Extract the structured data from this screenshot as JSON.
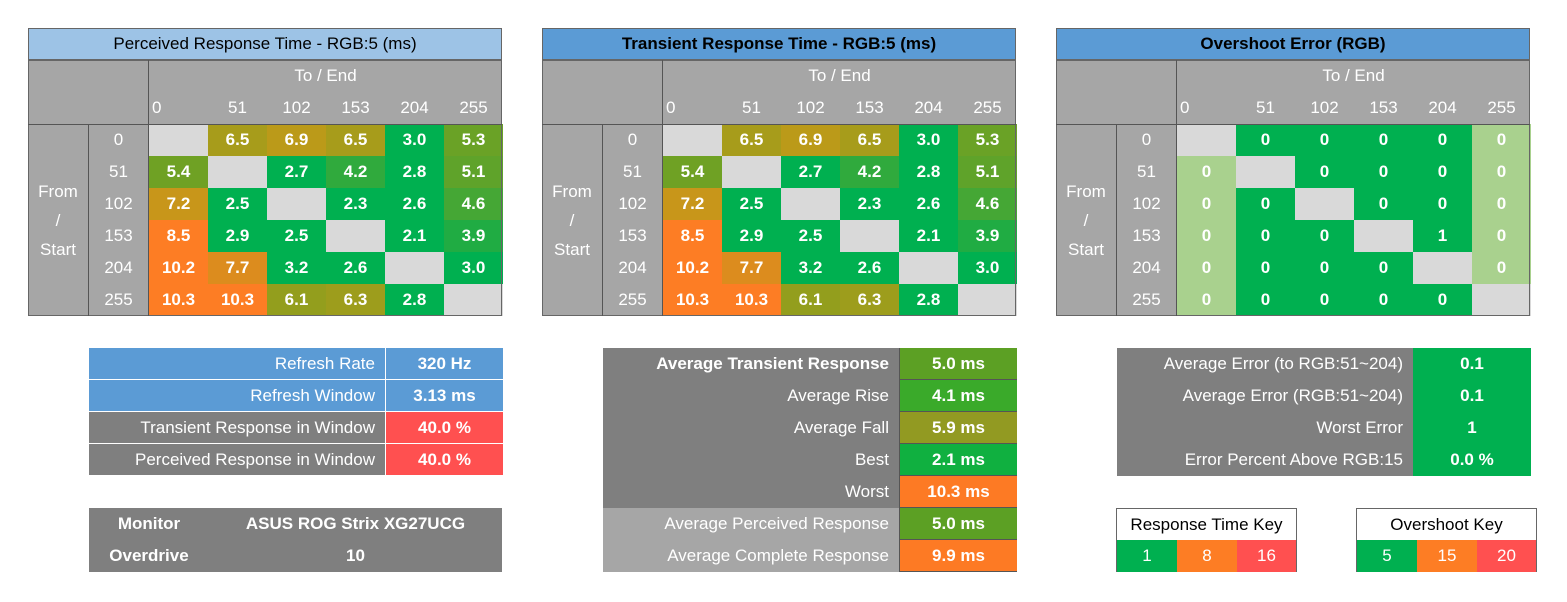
{
  "matrices": [
    {
      "title": "Perceived Response Time - RGB:5 (ms)",
      "title_bg": "#9dc3e6",
      "title_bold": false,
      "kind": "time",
      "to_label": "To / End",
      "from_label": [
        "From",
        "/",
        "Start"
      ],
      "levels": [
        "0",
        "51",
        "102",
        "153",
        "204",
        "255"
      ],
      "values": [
        [
          null,
          "6.5",
          "6.9",
          "6.5",
          "3.0",
          "5.3"
        ],
        [
          "5.4",
          null,
          "2.7",
          "4.2",
          "2.8",
          "5.1"
        ],
        [
          "7.2",
          "2.5",
          null,
          "2.3",
          "2.6",
          "4.6"
        ],
        [
          "8.5",
          "2.9",
          "2.5",
          null,
          "2.1",
          "3.9"
        ],
        [
          "10.2",
          "7.7",
          "3.2",
          "2.6",
          null,
          "3.0"
        ],
        [
          "10.3",
          "10.3",
          "6.1",
          "6.3",
          "2.8",
          null
        ]
      ]
    },
    {
      "title": "Transient Response Time - RGB:5 (ms)",
      "title_bg": "#5b9bd5",
      "title_bold": true,
      "kind": "time",
      "to_label": "To / End",
      "from_label": [
        "From",
        "/",
        "Start"
      ],
      "levels": [
        "0",
        "51",
        "102",
        "153",
        "204",
        "255"
      ],
      "values": [
        [
          null,
          "6.5",
          "6.9",
          "6.5",
          "3.0",
          "5.3"
        ],
        [
          "5.4",
          null,
          "2.7",
          "4.2",
          "2.8",
          "5.1"
        ],
        [
          "7.2",
          "2.5",
          null,
          "2.3",
          "2.6",
          "4.6"
        ],
        [
          "8.5",
          "2.9",
          "2.5",
          null,
          "2.1",
          "3.9"
        ],
        [
          "10.2",
          "7.7",
          "3.2",
          "2.6",
          null,
          "3.0"
        ],
        [
          "10.3",
          "10.3",
          "6.1",
          "6.3",
          "2.8",
          null
        ]
      ]
    },
    {
      "title": "Overshoot Error (RGB)",
      "title_bg": "#5b9bd5",
      "title_bold": true,
      "kind": "overshoot",
      "to_label": "To / End",
      "from_label": [
        "From",
        "/",
        "Start"
      ],
      "levels": [
        "0",
        "51",
        "102",
        "153",
        "204",
        "255"
      ],
      "values": [
        [
          null,
          "0",
          "0",
          "0",
          "0",
          "0"
        ],
        [
          "0",
          null,
          "0",
          "0",
          "0",
          "0"
        ],
        [
          "0",
          "0",
          null,
          "0",
          "0",
          "0"
        ],
        [
          "0",
          "0",
          "0",
          null,
          "1",
          "0"
        ],
        [
          "0",
          "0",
          "0",
          "0",
          null,
          "0"
        ],
        [
          "0",
          "0",
          "0",
          "0",
          "0",
          null
        ]
      ]
    }
  ],
  "refresh_table": {
    "rows": [
      {
        "label": "Refresh Rate",
        "value": "320 Hz",
        "label_bg": "#5b9bd5",
        "value_bg": "#5b9bd5"
      },
      {
        "label": "Refresh Window",
        "value": "3.13 ms",
        "label_bg": "#5b9bd5",
        "value_bg": "#5b9bd5"
      },
      {
        "label": "Transient Response in Window",
        "value": "40.0 %",
        "label_bg": "#7f7f7f",
        "value_bg": "#ff5050"
      },
      {
        "label": "Perceived Response in Window",
        "value": "40.0 %",
        "label_bg": "#7f7f7f",
        "value_bg": "#ff5050"
      }
    ]
  },
  "monitor_table": {
    "monitor_label": "Monitor",
    "monitor_value": "ASUS ROG Strix XG27UCG",
    "overdrive_label": "Overdrive",
    "overdrive_value": "10"
  },
  "averages_table": {
    "rows": [
      {
        "label": "Average Transient Response",
        "value": "5.0 ms",
        "bold": true,
        "label_bg": "#7f7f7f",
        "value_bg": "#5ca024"
      },
      {
        "label": "Average Rise",
        "value": "4.1 ms",
        "bold": false,
        "label_bg": "#7f7f7f",
        "value_bg": "#3aaa2a"
      },
      {
        "label": "Average Fall",
        "value": "5.9 ms",
        "bold": false,
        "label_bg": "#7f7f7f",
        "value_bg": "#929a22"
      },
      {
        "label": "Best",
        "value": "2.1 ms",
        "bold": false,
        "label_bg": "#7f7f7f",
        "value_bg": "#10b040"
      },
      {
        "label": "Worst",
        "value": "10.3 ms",
        "bold": false,
        "label_bg": "#7f7f7f",
        "value_bg": "#fd7a24"
      },
      {
        "label": "Average Perceived Response",
        "value": "5.0 ms",
        "bold": false,
        "label_bg": "#a6a6a6",
        "value_bg": "#5ca024"
      },
      {
        "label": "Average Complete Response",
        "value": "9.9 ms",
        "bold": false,
        "label_bg": "#a6a6a6",
        "value_bg": "#fd7a24"
      }
    ]
  },
  "error_table": {
    "rows": [
      {
        "label": "Average Error (to RGB:51~204)",
        "value": "0.1"
      },
      {
        "label": "Average Error (RGB:51~204)",
        "value": "0.1"
      },
      {
        "label": "Worst Error",
        "value": "1"
      },
      {
        "label": "Error Percent Above RGB:15",
        "value": "0.0 %"
      }
    ]
  },
  "response_key": {
    "title": "Response Time Key",
    "items": [
      {
        "label": "1",
        "color": "#00b050"
      },
      {
        "label": "8",
        "color": "#fd7d24"
      },
      {
        "label": "16",
        "color": "#ff5050"
      }
    ]
  },
  "overshoot_key": {
    "title": "Overshoot Key",
    "items": [
      {
        "label": "5",
        "color": "#00b050"
      },
      {
        "label": "15",
        "color": "#fd7d24"
      },
      {
        "label": "20",
        "color": "#ff5050"
      }
    ]
  },
  "chart_data": [
    {
      "type": "heatmap",
      "title": "Perceived Response Time - RGB:5 (ms)",
      "xlabel": "To / End",
      "ylabel": "From / Start",
      "x": [
        0,
        51,
        102,
        153,
        204,
        255
      ],
      "y": [
        0,
        51,
        102,
        153,
        204,
        255
      ],
      "values": [
        [
          null,
          6.5,
          6.9,
          6.5,
          3.0,
          5.3
        ],
        [
          5.4,
          null,
          2.7,
          4.2,
          2.8,
          5.1
        ],
        [
          7.2,
          2.5,
          null,
          2.3,
          2.6,
          4.6
        ],
        [
          8.5,
          2.9,
          2.5,
          null,
          2.1,
          3.9
        ],
        [
          10.2,
          7.7,
          3.2,
          2.6,
          null,
          3.0
        ],
        [
          10.3,
          10.3,
          6.1,
          6.3,
          2.8,
          null
        ]
      ]
    },
    {
      "type": "heatmap",
      "title": "Transient Response Time - RGB:5 (ms)",
      "xlabel": "To / End",
      "ylabel": "From / Start",
      "x": [
        0,
        51,
        102,
        153,
        204,
        255
      ],
      "y": [
        0,
        51,
        102,
        153,
        204,
        255
      ],
      "values": [
        [
          null,
          6.5,
          6.9,
          6.5,
          3.0,
          5.3
        ],
        [
          5.4,
          null,
          2.7,
          4.2,
          2.8,
          5.1
        ],
        [
          7.2,
          2.5,
          null,
          2.3,
          2.6,
          4.6
        ],
        [
          8.5,
          2.9,
          2.5,
          null,
          2.1,
          3.9
        ],
        [
          10.2,
          7.7,
          3.2,
          2.6,
          null,
          3.0
        ],
        [
          10.3,
          10.3,
          6.1,
          6.3,
          2.8,
          null
        ]
      ]
    },
    {
      "type": "heatmap",
      "title": "Overshoot Error (RGB)",
      "xlabel": "To / End",
      "ylabel": "From / Start",
      "x": [
        0,
        51,
        102,
        153,
        204,
        255
      ],
      "y": [
        0,
        51,
        102,
        153,
        204,
        255
      ],
      "values": [
        [
          null,
          0,
          0,
          0,
          0,
          0
        ],
        [
          0,
          null,
          0,
          0,
          0,
          0
        ],
        [
          0,
          0,
          null,
          0,
          0,
          0
        ],
        [
          0,
          0,
          0,
          null,
          1,
          0
        ],
        [
          0,
          0,
          0,
          0,
          null,
          0
        ],
        [
          0,
          0,
          0,
          0,
          0,
          null
        ]
      ]
    }
  ]
}
